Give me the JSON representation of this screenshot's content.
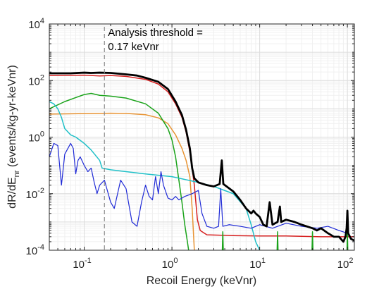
{
  "chart_data": {
    "type": "line",
    "xlabel": "Recoil Energy (keVnr)",
    "ylabel": {
      "main": "dR/dE",
      "sub": "nr",
      "rest": " (events/kg-yr-keVnr)"
    },
    "x_scale": "log",
    "y_scale": "log",
    "xlim": [
      0.04,
      120
    ],
    "ylim": [
      0.0001,
      10000
    ],
    "x_ticks": [
      {
        "value": 0.1,
        "base": "10",
        "exp": "-1"
      },
      {
        "value": 1,
        "base": "10",
        "exp": "0"
      },
      {
        "value": 10,
        "base": "10",
        "exp": "1"
      },
      {
        "value": 100,
        "base": "10",
        "exp": "2"
      }
    ],
    "y_ticks": [
      {
        "value": 0.0001,
        "base": "10",
        "exp": "-4"
      },
      {
        "value": 0.01,
        "base": "10",
        "exp": "-2"
      },
      {
        "value": 1,
        "base": "10",
        "exp": "0"
      },
      {
        "value": 100,
        "base": "10",
        "exp": "2"
      },
      {
        "value": 10000,
        "base": "10",
        "exp": "4"
      }
    ],
    "grid": true,
    "threshold": {
      "x": 0.17,
      "line1": "Analysis threshold =",
      "line2": "0.17 keVnr"
    },
    "series": [
      {
        "color": "#d62020",
        "width": 1.5,
        "points": [
          [
            0.04,
            150
          ],
          [
            0.1,
            155
          ],
          [
            0.15,
            145
          ],
          [
            0.2,
            150
          ],
          [
            0.3,
            140
          ],
          [
            0.5,
            110
          ],
          [
            0.7,
            75
          ],
          [
            0.9,
            40
          ],
          [
            1.1,
            15
          ],
          [
            1.3,
            5
          ],
          [
            1.45,
            1.5
          ],
          [
            1.6,
            0.3
          ],
          [
            1.8,
            0.02
          ],
          [
            1.95,
            0.0012
          ],
          [
            2.1,
            0.0005
          ],
          [
            2.5,
            0.00035
          ],
          [
            5,
            0.00033
          ],
          [
            10,
            0.00032
          ],
          [
            20,
            0.00032
          ],
          [
            50,
            0.0003
          ],
          [
            120,
            0.0003
          ]
        ]
      },
      {
        "color": "#e89434",
        "width": 1.5,
        "points": [
          [
            0.04,
            6.5
          ],
          [
            0.1,
            6.8
          ],
          [
            0.2,
            7
          ],
          [
            0.3,
            6.9
          ],
          [
            0.5,
            6.2
          ],
          [
            0.7,
            4.8
          ],
          [
            0.9,
            3
          ],
          [
            1.1,
            1.2
          ],
          [
            1.3,
            0.4
          ],
          [
            1.45,
            0.15
          ],
          [
            1.6,
            0.04
          ],
          [
            1.7,
            0.003
          ],
          [
            1.8,
            0.0001
          ]
        ]
      },
      {
        "color": "#1aa31a",
        "width": 1.5,
        "points": [
          [
            0.04,
            10
          ],
          [
            0.06,
            18
          ],
          [
            0.08,
            25
          ],
          [
            0.1,
            32
          ],
          [
            0.12,
            35
          ],
          [
            0.15,
            30
          ],
          [
            0.2,
            28
          ],
          [
            0.3,
            24
          ],
          [
            0.5,
            15
          ],
          [
            0.7,
            7
          ],
          [
            0.9,
            2
          ],
          [
            1.0,
            0.8
          ],
          [
            1.1,
            0.2
          ],
          [
            1.2,
            0.03
          ],
          [
            1.3,
            0.005
          ],
          [
            1.4,
            0.0008
          ],
          [
            1.5,
            0.0002
          ],
          [
            1.55,
            0.0001
          ]
        ]
      },
      {
        "color": "#20c0c8",
        "width": 1.5,
        "points": [
          [
            0.04,
            18
          ],
          [
            0.045,
            15
          ],
          [
            0.05,
            10
          ],
          [
            0.055,
            5
          ],
          [
            0.06,
            2
          ],
          [
            0.07,
            1.2
          ],
          [
            0.08,
            1
          ],
          [
            0.1,
            0.6
          ],
          [
            0.12,
            0.35
          ],
          [
            0.15,
            0.15
          ],
          [
            0.16,
            0.08
          ],
          [
            0.2,
            0.07
          ],
          [
            0.3,
            0.06
          ],
          [
            0.5,
            0.05
          ],
          [
            1,
            0.04
          ],
          [
            2,
            0.025
          ],
          [
            3,
            0.018
          ],
          [
            5,
            0.01
          ],
          [
            7,
            0.003
          ],
          [
            8,
            0.0008
          ],
          [
            9,
            0.0002
          ],
          [
            10,
            0.0001
          ]
        ]
      },
      {
        "color": "#1f2ad6",
        "width": 1.2,
        "points": [
          [
            0.04,
            0.2
          ],
          [
            0.045,
            0.6
          ],
          [
            0.05,
            0.5
          ],
          [
            0.055,
            0.02
          ],
          [
            0.06,
            0.25
          ],
          [
            0.07,
            0.6
          ],
          [
            0.075,
            0.4
          ],
          [
            0.08,
            0.05
          ],
          [
            0.085,
            0.15
          ],
          [
            0.09,
            0.2
          ],
          [
            0.1,
            0.1
          ],
          [
            0.11,
            0.06
          ],
          [
            0.12,
            0.08
          ],
          [
            0.13,
            0.025
          ],
          [
            0.14,
            0.01
          ],
          [
            0.15,
            0.02
          ],
          [
            0.17,
            0.03
          ],
          [
            0.2,
            0.005
          ],
          [
            0.22,
            0.003
          ],
          [
            0.26,
            0.03
          ],
          [
            0.3,
            0.015
          ],
          [
            0.35,
            0.001
          ],
          [
            0.4,
            0.0007
          ],
          [
            0.45,
            0.005
          ],
          [
            0.5,
            0.02
          ],
          [
            0.55,
            0.008
          ],
          [
            0.6,
            0.006
          ],
          [
            0.65,
            0.04
          ],
          [
            0.7,
            0.01
          ],
          [
            0.75,
            0.06
          ],
          [
            0.8,
            0.02
          ],
          [
            0.9,
            0.007
          ],
          [
            1.0,
            0.006
          ],
          [
            1.1,
            0.008
          ],
          [
            1.2,
            0.006
          ],
          [
            1.4,
            0.008
          ],
          [
            1.7,
            0.01
          ],
          [
            2.0,
            0.013
          ],
          [
            2.2,
            0.002
          ],
          [
            2.5,
            0.0007
          ],
          [
            3.0,
            0.0006
          ],
          [
            3.4,
            0.0007
          ],
          [
            3.6,
            0.015
          ],
          [
            3.8,
            0.0007
          ],
          [
            4.5,
            0.0008
          ],
          [
            6,
            0.0007
          ],
          [
            8,
            0.0006
          ],
          [
            10,
            0.0008
          ],
          [
            14,
            0.0006
          ],
          [
            20,
            0.0009
          ],
          [
            30,
            0.0007
          ],
          [
            45,
            0.0006
          ],
          [
            60,
            0.0007
          ],
          [
            80,
            0.0005
          ],
          [
            100,
            0.0004
          ],
          [
            120,
            0.0002
          ]
        ]
      },
      {
        "color": "#1aa31a",
        "width": 1.5,
        "points": [
          [
            3.75,
            0.0001
          ],
          [
            3.8,
            0.00045
          ],
          [
            3.85,
            0.0001
          ]
        ]
      },
      {
        "color": "#1aa31a",
        "width": 1.5,
        "points": [
          [
            15.8,
            0.0001
          ],
          [
            16,
            0.00045
          ],
          [
            16.2,
            0.0001
          ]
        ]
      },
      {
        "color": "#1aa31a",
        "width": 1.5,
        "points": [
          [
            39.5,
            0.0001
          ],
          [
            40,
            0.00045
          ],
          [
            40.5,
            0.0001
          ]
        ]
      },
      {
        "color": "#1aa31a",
        "width": 1.5,
        "points": [
          [
            99,
            0.0001
          ],
          [
            100,
            0.00045
          ],
          [
            101,
            0.0001
          ]
        ]
      },
      {
        "color": "#000000",
        "width": 2.8,
        "points": [
          [
            0.04,
            180
          ],
          [
            0.07,
            180
          ],
          [
            0.1,
            190
          ],
          [
            0.12,
            185
          ],
          [
            0.15,
            190
          ],
          [
            0.2,
            185
          ],
          [
            0.3,
            165
          ],
          [
            0.4,
            150
          ],
          [
            0.5,
            125
          ],
          [
            0.7,
            90
          ],
          [
            0.9,
            50
          ],
          [
            1.1,
            18
          ],
          [
            1.3,
            6
          ],
          [
            1.45,
            1.8
          ],
          [
            1.6,
            0.4
          ],
          [
            1.7,
            0.08
          ],
          [
            1.8,
            0.035
          ],
          [
            2.0,
            0.025
          ],
          [
            2.5,
            0.02
          ],
          [
            3.0,
            0.018
          ],
          [
            3.5,
            0.022
          ],
          [
            3.7,
            0.15
          ],
          [
            3.85,
            0.022
          ],
          [
            5,
            0.012
          ],
          [
            6,
            0.006
          ],
          [
            7,
            0.003
          ],
          [
            8,
            0.002
          ],
          [
            8.5,
            0.0025
          ],
          [
            9,
            0.002
          ],
          [
            10,
            0.0015
          ],
          [
            11,
            0.0008
          ],
          [
            12,
            0.0007
          ],
          [
            13,
            0.005
          ],
          [
            14,
            0.0008
          ],
          [
            16,
            0.001
          ],
          [
            17,
            0.0035
          ],
          [
            17.6,
            0.001
          ],
          [
            20,
            0.0012
          ],
          [
            25,
            0.001
          ],
          [
            30,
            0.0008
          ],
          [
            40,
            0.0006
          ],
          [
            45,
            0.0005
          ],
          [
            50,
            0.0006
          ],
          [
            60,
            0.0004
          ],
          [
            70,
            0.0003
          ],
          [
            80,
            0.0003
          ],
          [
            90,
            0.0002
          ],
          [
            95,
            0.0003
          ],
          [
            98,
            0.0006
          ],
          [
            100,
            0.0025
          ],
          [
            102,
            0.0004
          ],
          [
            110,
            0.00025
          ],
          [
            120,
            0.00022
          ]
        ]
      }
    ]
  }
}
